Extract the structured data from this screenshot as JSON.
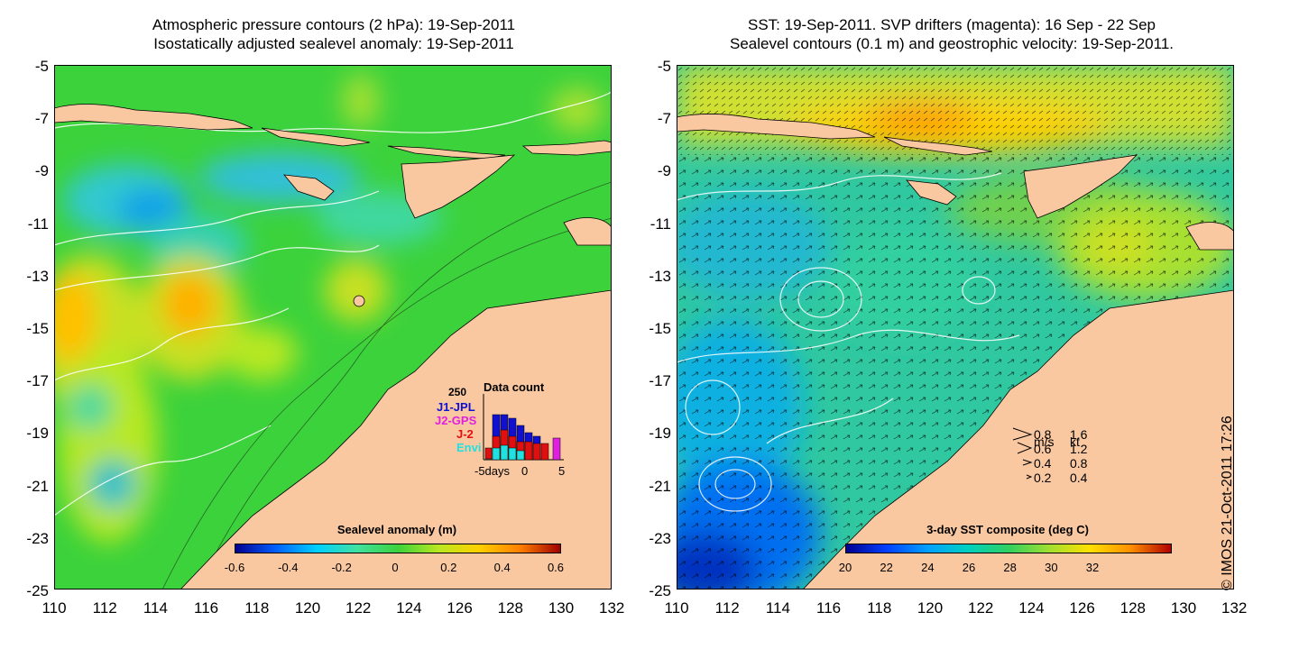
{
  "left_panel": {
    "title_line1": "Atmospheric pressure contours (2 hPa): 19-Sep-2011",
    "title_line2": "Isostatically adjusted sealevel anomaly: 19-Sep-2011",
    "colorbar_title": "Sealevel anomaly (m)",
    "colorbar_ticks": [
      "-0.6",
      "-0.4",
      "-0.2",
      "0",
      "0.2",
      "0.4",
      "0.6"
    ],
    "inset": {
      "title": "Data count",
      "y_max_label": "250",
      "legend": [
        {
          "label": "J1-JPL",
          "color": "#1010d0"
        },
        {
          "label": "J2-GPS",
          "color": "#e020e0"
        },
        {
          "label": "J-2",
          "color": "#e01010"
        },
        {
          "label": "Envi",
          "color": "#20e0e0"
        }
      ],
      "x_labels": [
        "-5days",
        "0",
        "5"
      ]
    }
  },
  "right_panel": {
    "title_line1": "SST: 19-Sep-2011. SVP drifters (magenta): 16 Sep - 22 Sep",
    "title_line2": "Sealevel contours (0.1 m) and geostrophic velocity: 19-Sep-2011.",
    "colorbar_title": "3-day SST composite (deg C)",
    "colorbar_ticks": [
      "20",
      "22",
      "24",
      "26",
      "28",
      "30",
      "32"
    ],
    "speed_legend": {
      "header_ms": "m/s",
      "header_kt": "kt",
      "rows": [
        {
          "ms": "0.8",
          "kt": "1.6"
        },
        {
          "ms": "0.6",
          "kt": "1.2"
        },
        {
          "ms": "0.4",
          "kt": "0.8"
        },
        {
          "ms": "0.2",
          "kt": "0.4"
        }
      ]
    }
  },
  "axes": {
    "y_ticks": [
      "-5",
      "-7",
      "-9",
      "-11",
      "-13",
      "-15",
      "-17",
      "-19",
      "-21",
      "-23",
      "-25"
    ],
    "x_ticks": [
      "110",
      "112",
      "114",
      "116",
      "118",
      "120",
      "122",
      "124",
      "126",
      "128",
      "130",
      "132"
    ]
  },
  "copyright": "© IMOS 21-Oct-2011 17:26",
  "colors": {
    "land": "#f9c8a0",
    "sla_ramp": [
      "#00008f",
      "#0060ff",
      "#00d0ff",
      "#40e0a0",
      "#3cd23c",
      "#b8e820",
      "#ffd000",
      "#ff8000",
      "#a00000"
    ],
    "sst_ramp": [
      "#00008f",
      "#0040ff",
      "#00a0ff",
      "#00d0c0",
      "#30d060",
      "#a0e030",
      "#ffe000",
      "#ff9000",
      "#b00000"
    ]
  }
}
